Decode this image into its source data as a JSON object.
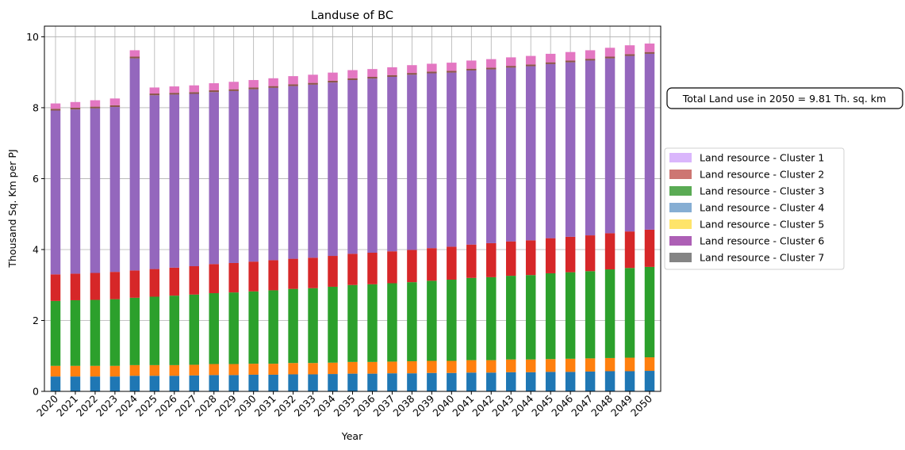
{
  "chart_data": {
    "type": "bar",
    "stacked": true,
    "title": "Landuse of BC",
    "xlabel": "Year",
    "ylabel": "Thousand Sq. Km per PJ",
    "ylim": [
      0,
      10.3
    ],
    "yticks": [
      0,
      2,
      4,
      6,
      8,
      10
    ],
    "grid": true,
    "legend_position": "right",
    "annotation": "Total Land use in 2050 = 9.81 Th. sq. km",
    "categories": [
      "2020",
      "2021",
      "2022",
      "2023",
      "2024",
      "2025",
      "2026",
      "2027",
      "2028",
      "2029",
      "2030",
      "2031",
      "2032",
      "2033",
      "2034",
      "2035",
      "2036",
      "2037",
      "2038",
      "2039",
      "2040",
      "2041",
      "2042",
      "2043",
      "2044",
      "2045",
      "2046",
      "2047",
      "2048",
      "2049",
      "2050"
    ],
    "series": [
      {
        "color": "#1f77b4",
        "values": [
          0.42,
          0.42,
          0.42,
          0.42,
          0.44,
          0.44,
          0.44,
          0.45,
          0.46,
          0.46,
          0.47,
          0.47,
          0.48,
          0.48,
          0.49,
          0.5,
          0.5,
          0.51,
          0.51,
          0.52,
          0.52,
          0.53,
          0.53,
          0.54,
          0.54,
          0.55,
          0.55,
          0.56,
          0.57,
          0.57,
          0.58
        ]
      },
      {
        "color": "#ff7f0e",
        "values": [
          0.3,
          0.3,
          0.3,
          0.3,
          0.3,
          0.3,
          0.3,
          0.3,
          0.31,
          0.31,
          0.31,
          0.31,
          0.32,
          0.32,
          0.32,
          0.33,
          0.33,
          0.33,
          0.34,
          0.34,
          0.34,
          0.35,
          0.35,
          0.36,
          0.36,
          0.36,
          0.37,
          0.37,
          0.37,
          0.38,
          0.38
        ]
      },
      {
        "color": "#2ca02c",
        "values": [
          1.83,
          1.85,
          1.86,
          1.88,
          1.9,
          1.93,
          1.96,
          1.98,
          2.0,
          2.02,
          2.04,
          2.07,
          2.09,
          2.11,
          2.14,
          2.17,
          2.19,
          2.21,
          2.23,
          2.26,
          2.29,
          2.32,
          2.34,
          2.36,
          2.38,
          2.42,
          2.44,
          2.46,
          2.5,
          2.53,
          2.55
        ]
      },
      {
        "color": "#d62728",
        "values": [
          0.75,
          0.75,
          0.76,
          0.77,
          0.77,
          0.78,
          0.79,
          0.8,
          0.82,
          0.83,
          0.84,
          0.85,
          0.85,
          0.86,
          0.87,
          0.88,
          0.89,
          0.9,
          0.91,
          0.92,
          0.93,
          0.94,
          0.96,
          0.97,
          0.98,
          0.99,
          1.0,
          1.01,
          1.02,
          1.03,
          1.05
        ]
      },
      {
        "color": "#9467bd",
        "values": [
          4.62,
          4.63,
          4.64,
          4.65,
          5.98,
          4.9,
          4.88,
          4.86,
          4.85,
          4.85,
          4.86,
          4.86,
          4.87,
          4.88,
          4.89,
          4.9,
          4.91,
          4.92,
          4.94,
          4.93,
          4.91,
          4.91,
          4.9,
          4.9,
          4.91,
          4.91,
          4.92,
          4.93,
          4.93,
          4.95,
          4.96
        ]
      },
      {
        "color": "#8c564b",
        "values": [
          0.05,
          0.05,
          0.05,
          0.05,
          0.05,
          0.05,
          0.05,
          0.05,
          0.05,
          0.05,
          0.05,
          0.05,
          0.05,
          0.05,
          0.05,
          0.05,
          0.05,
          0.05,
          0.05,
          0.05,
          0.05,
          0.05,
          0.05,
          0.05,
          0.05,
          0.05,
          0.05,
          0.05,
          0.05,
          0.05,
          0.05
        ]
      },
      {
        "color": "#e377c2",
        "values": [
          0.15,
          0.16,
          0.18,
          0.19,
          0.18,
          0.17,
          0.18,
          0.19,
          0.2,
          0.21,
          0.21,
          0.22,
          0.23,
          0.23,
          0.23,
          0.23,
          0.22,
          0.22,
          0.22,
          0.22,
          0.23,
          0.23,
          0.24,
          0.24,
          0.24,
          0.24,
          0.24,
          0.24,
          0.25,
          0.25,
          0.24
        ]
      }
    ],
    "legend": [
      {
        "name": "Land resource - Cluster 1",
        "color": "#dab6fc"
      },
      {
        "name": "Land resource - Cluster 2",
        "color": "#cd7672"
      },
      {
        "name": "Land resource - Cluster 3",
        "color": "#5aab54"
      },
      {
        "name": "Land resource - Cluster 4",
        "color": "#86aed3"
      },
      {
        "name": "Land resource - Cluster 5",
        "color": "#fee46a"
      },
      {
        "name": "Land resource - Cluster 6",
        "color": "#ad5fb5"
      },
      {
        "name": "Land resource - Cluster 7",
        "color": "#848484"
      }
    ]
  }
}
